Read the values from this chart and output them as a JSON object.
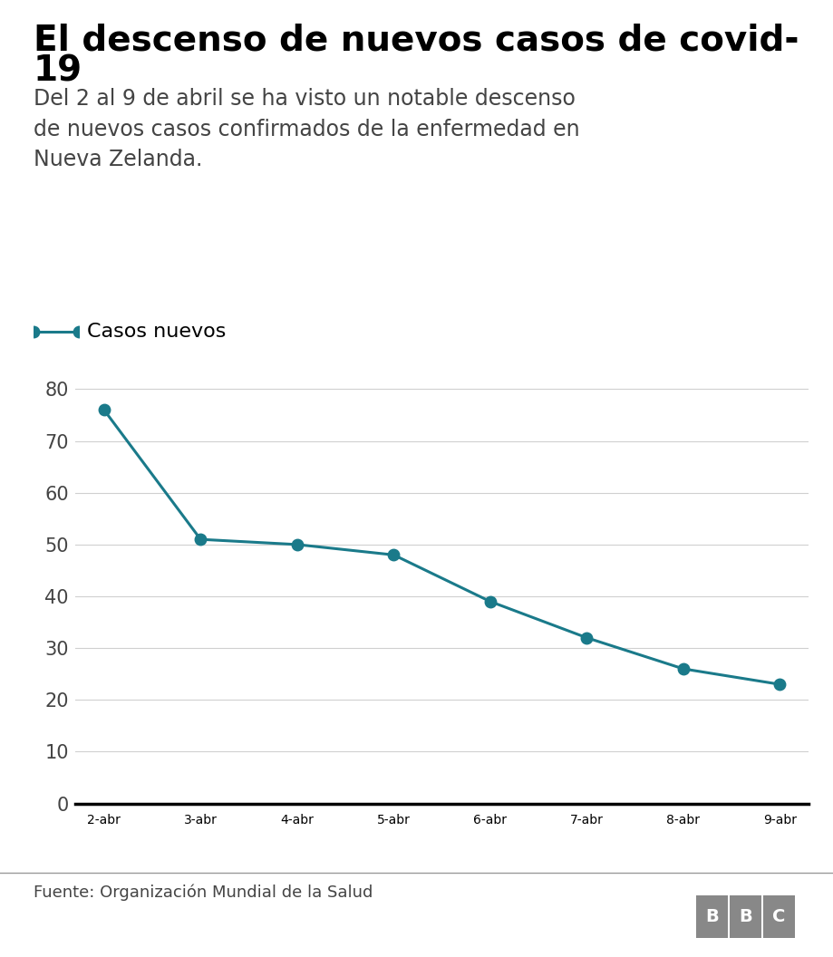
{
  "title_line1": "El descenso de nuevos casos de covid-",
  "title_line2": "19",
  "subtitle": "Del 2 al 9 de abril se ha visto un notable descenso\nde nuevos casos confirmados de la enfermedad en\nNueva Zelanda.",
  "legend_label": "Casos nuevos",
  "x_labels": [
    "2-abr",
    "3-abr",
    "4-abr",
    "5-abr",
    "6-abr",
    "7-abr",
    "8-abr",
    "9-abr"
  ],
  "y_values": [
    76,
    51,
    50,
    48,
    39,
    32,
    26,
    23
  ],
  "y_ticks": [
    0,
    10,
    20,
    30,
    40,
    50,
    60,
    70,
    80
  ],
  "ylim": [
    -1,
    84
  ],
  "line_color": "#1a7a8a",
  "marker_color": "#1a7a8a",
  "marker_size": 9,
  "line_width": 2.2,
  "title_fontsize": 28,
  "subtitle_fontsize": 17,
  "legend_fontsize": 16,
  "tick_fontsize": 15,
  "source_text": "Fuente: Organización Mundial de la Salud",
  "bbc_text": "BBC",
  "source_fontsize": 13,
  "background_color": "#ffffff",
  "axis_bottom_color": "#000000",
  "grid_color": "#d0d0d0",
  "title_color": "#000000",
  "subtitle_color": "#444444",
  "tick_color": "#444444",
  "footer_line_color": "#999999",
  "bbc_box_color": "#888888"
}
